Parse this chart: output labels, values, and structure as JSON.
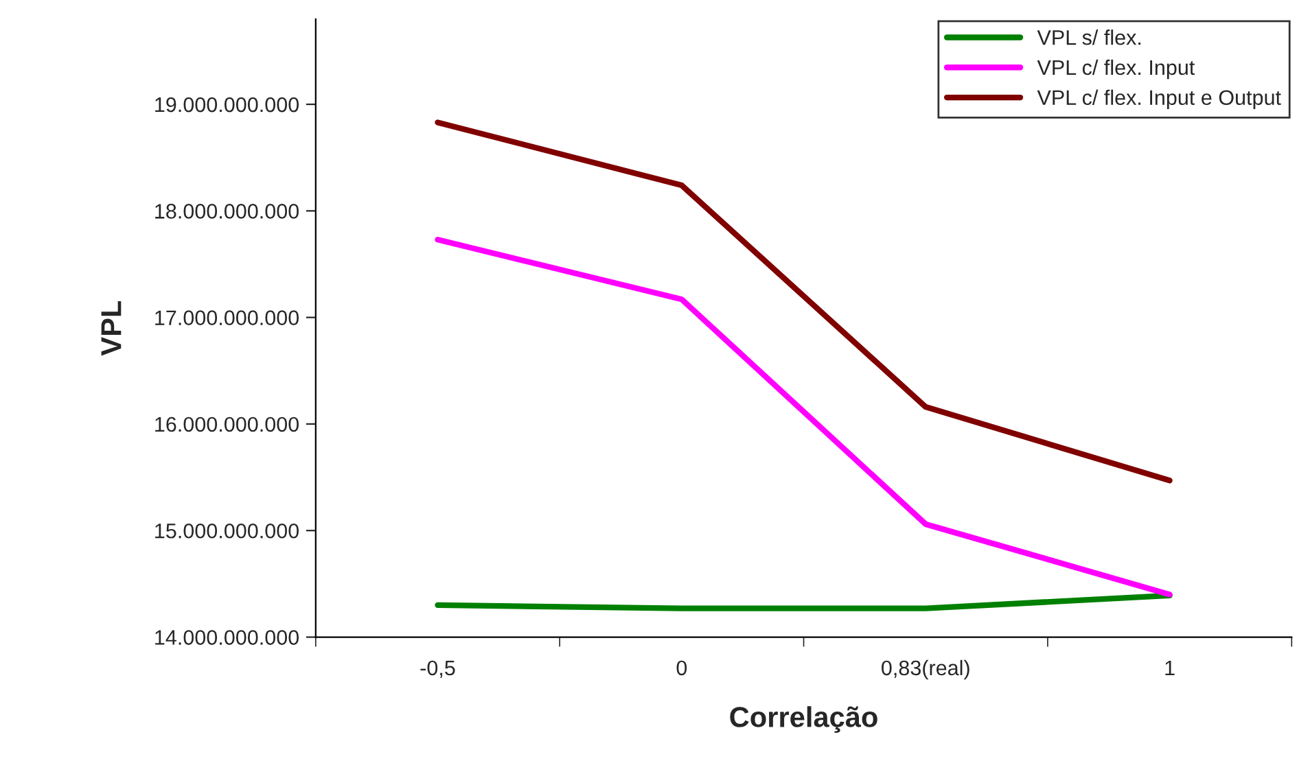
{
  "chart_data": {
    "type": "line",
    "xlabel": "Correlação",
    "ylabel": "VPL",
    "categories": [
      "-0,5",
      "0",
      "0,83(real)",
      "1"
    ],
    "series": [
      {
        "name": "VPL s/ flex.",
        "color": "#008000",
        "values": [
          14300000000,
          14270000000,
          14270000000,
          14390000000
        ]
      },
      {
        "name": "VPL c/ flex. Input",
        "color": "#ff00ff",
        "values": [
          17730000000,
          17170000000,
          15060000000,
          14400000000
        ]
      },
      {
        "name": "VPL c/ flex. Input e Output",
        "color": "#800000",
        "values": [
          18830000000,
          18240000000,
          16160000000,
          15470000000
        ]
      }
    ],
    "ylim": [
      14000000000,
      19800000000
    ],
    "yticks": [
      {
        "value": 14000000000,
        "label": "14.000.000.000"
      },
      {
        "value": 15000000000,
        "label": "15.000.000.000"
      },
      {
        "value": 16000000000,
        "label": "16.000.000.000"
      },
      {
        "value": 17000000000,
        "label": "17.000.000.000"
      },
      {
        "value": 18000000000,
        "label": "18.000.000.000"
      },
      {
        "value": 19000000000,
        "label": "19.000.000.000"
      }
    ],
    "grid": false,
    "legend": "top right",
    "marker": "none",
    "line_style": "solid"
  }
}
